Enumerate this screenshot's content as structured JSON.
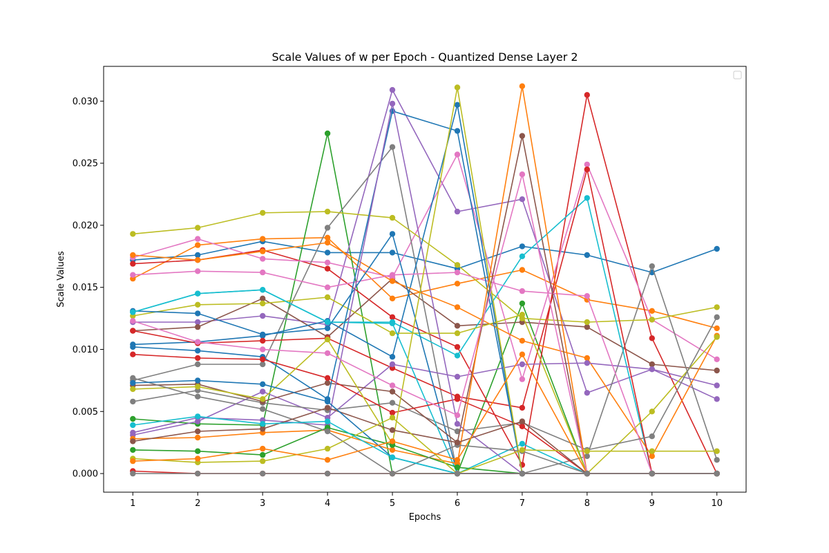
{
  "chart_data": {
    "type": "line",
    "title": "Scale Values of w per Epoch - Quantized Dense Layer 2",
    "xlabel": "Epochs",
    "ylabel": "Scale Values",
    "x": [
      1,
      2,
      3,
      4,
      5,
      6,
      7,
      8,
      9,
      10
    ],
    "xlim": [
      0.55,
      10.45
    ],
    "ylim": [
      -0.0015,
      0.0328
    ],
    "yticks": [
      "0.000",
      "0.005",
      "0.010",
      "0.015",
      "0.020",
      "0.025",
      "0.030"
    ],
    "legend": "top-right (empty)",
    "marker": "circle",
    "series": [
      {
        "color": "#1f77b4",
        "values": [
          0.0172,
          0.0176,
          0.0187,
          0.0178,
          0.0178,
          0.0165,
          0.0183,
          0.0176,
          0.0162,
          0.0181
        ]
      },
      {
        "color": "#ff7f0e",
        "values": [
          0.0157,
          0.0184,
          0.0189,
          0.019,
          0.0141,
          0.0153,
          0.0164,
          0.014,
          0.0131,
          0.0117
        ]
      },
      {
        "color": "#2ca02c",
        "values": [
          0.0044,
          0.004,
          0.0039,
          0.0274,
          0.0,
          0.0,
          0.0137,
          0.0,
          0.0,
          0.0
        ]
      },
      {
        "color": "#d62728",
        "values": [
          0.0169,
          0.0172,
          0.018,
          0.0165,
          0.0126,
          0.0102,
          0.0007,
          0.0305,
          0.0109,
          0.0
        ]
      },
      {
        "color": "#9467bd",
        "values": [
          0.0122,
          0.0122,
          0.0127,
          0.012,
          0.0309,
          0.0211,
          0.0221,
          0.0065,
          0.0084,
          0.006
        ]
      },
      {
        "color": "#8c564b",
        "values": [
          0.0115,
          0.0118,
          0.0141,
          0.011,
          0.0157,
          0.0119,
          0.0122,
          0.0118,
          0.0088,
          0.0083
        ]
      },
      {
        "color": "#e377c2",
        "values": [
          0.0174,
          0.0189,
          0.0173,
          0.017,
          0.0158,
          0.0257,
          0.0076,
          0.0249,
          0.0124,
          0.0092
        ]
      },
      {
        "color": "#7f7f7f",
        "values": [
          0.0075,
          0.0088,
          0.0088,
          0.0198,
          0.0263,
          0.0,
          0.0,
          0.0014,
          0.0167,
          0.0011
        ]
      },
      {
        "color": "#bcbd22",
        "values": [
          0.0193,
          0.0198,
          0.021,
          0.0211,
          0.0206,
          0.0168,
          0.0125,
          0.0122,
          0.0124,
          0.0134
        ]
      },
      {
        "color": "#17becf",
        "values": [
          0.013,
          0.0145,
          0.0148,
          0.0122,
          0.0122,
          0.0095,
          0.0175,
          0.0222,
          0.0,
          0.0
        ]
      },
      {
        "color": "#1f77b4",
        "values": [
          0.0104,
          0.0106,
          0.0111,
          0.0123,
          0.0094,
          0.0297,
          0.0,
          0.0,
          0.0,
          0.0
        ]
      },
      {
        "color": "#ff7f0e",
        "values": [
          0.0176,
          0.0172,
          0.0179,
          0.0186,
          0.0155,
          0.0134,
          0.0107,
          0.0093,
          0.0014,
          0.0111
        ]
      },
      {
        "color": "#d62728",
        "values": [
          0.0115,
          0.0105,
          0.0107,
          0.0109,
          0.0085,
          0.0062,
          0.0053,
          0.0245,
          0.0,
          0.0
        ]
      },
      {
        "color": "#9467bd",
        "values": [
          0.0031,
          0.0042,
          0.0066,
          0.0045,
          0.0088,
          0.0078,
          0.0088,
          0.0089,
          0.0084,
          0.0071
        ]
      },
      {
        "color": "#bcbd22",
        "values": [
          0.0127,
          0.0136,
          0.0137,
          0.0142,
          0.0113,
          0.0113,
          0.0128,
          0.0,
          0.005,
          0.011
        ]
      },
      {
        "color": "#e377c2",
        "values": [
          0.016,
          0.0163,
          0.0162,
          0.015,
          0.016,
          0.0162,
          0.0147,
          0.0143,
          0.0,
          0.0
        ]
      },
      {
        "color": "#1f77b4",
        "values": [
          0.0131,
          0.0129,
          0.0112,
          0.0117,
          0.0193,
          0.0,
          0.0,
          0.0,
          0.0,
          0.0
        ]
      },
      {
        "color": "#7f7f7f",
        "values": [
          0.0058,
          0.0067,
          0.0057,
          0.0051,
          0.0057,
          0.0034,
          0.0041,
          0.0019,
          0.003,
          0.0126
        ]
      },
      {
        "color": "#8c564b",
        "values": [
          0.0071,
          0.0072,
          0.0058,
          0.0073,
          0.0066,
          0.0025,
          0.0272,
          0.0,
          0.0,
          0.0
        ]
      },
      {
        "color": "#17becf",
        "values": [
          0.013,
          0.0145,
          0.0148,
          0.0122,
          0.0121,
          0.0,
          0.0024,
          0.0,
          0.0,
          0.0
        ]
      },
      {
        "color": "#1f77b4",
        "values": [
          0.0102,
          0.0099,
          0.0094,
          0.006,
          0.0292,
          0.0276,
          0.0,
          0.0,
          0.0,
          0.0
        ]
      },
      {
        "color": "#d62728",
        "values": [
          0.0096,
          0.0093,
          0.0092,
          0.0077,
          0.0049,
          0.006,
          0.0038,
          0.0,
          0.0,
          0.0
        ]
      },
      {
        "color": "#bcbd22",
        "values": [
          0.0068,
          0.007,
          0.006,
          0.0108,
          0.0024,
          0.0311,
          0.0,
          0.0,
          0.0,
          0.0
        ]
      },
      {
        "color": "#9467bd",
        "values": [
          0.0033,
          0.0045,
          0.0043,
          0.0039,
          0.0298,
          0.004,
          0.0,
          0.0,
          0.0,
          0.0
        ]
      },
      {
        "color": "#ff7f0e",
        "values": [
          0.0028,
          0.0029,
          0.0033,
          0.0035,
          0.0019,
          0.0008,
          0.0312,
          0.0,
          0.0,
          0.0
        ]
      },
      {
        "color": "#e377c2",
        "values": [
          0.0123,
          0.0106,
          0.01,
          0.0097,
          0.0071,
          0.0047,
          0.0241,
          0.0,
          0.0,
          0.0
        ]
      },
      {
        "color": "#2ca02c",
        "values": [
          0.0019,
          0.0018,
          0.0015,
          0.0037,
          0.0023,
          0.0005,
          0.0,
          0.0,
          0.0,
          0.0
        ]
      },
      {
        "color": "#7f7f7f",
        "values": [
          0.0077,
          0.0062,
          0.0052,
          0.0034,
          0.0,
          0.0023,
          0.0018,
          0.0,
          0.0,
          0.0
        ]
      },
      {
        "color": "#8c564b",
        "values": [
          0.0026,
          0.0034,
          0.0036,
          0.0053,
          0.0035,
          0.0025,
          0.0042,
          0.0,
          0.0,
          0.0
        ]
      },
      {
        "color": "#1f77b4",
        "values": [
          0.0073,
          0.0075,
          0.0072,
          0.0058,
          0.0013,
          0.0,
          0.0,
          0.0,
          0.0,
          0.0
        ]
      },
      {
        "color": "#bcbd22",
        "values": [
          0.0012,
          0.0009,
          0.001,
          0.002,
          0.0045,
          0.0,
          0.0019,
          0.0018,
          0.0018,
          0.0018
        ]
      },
      {
        "color": "#ff7f0e",
        "values": [
          0.001,
          0.0012,
          0.002,
          0.0011,
          0.0026,
          0.0011,
          0.0096,
          0.0,
          0.0,
          0.0
        ]
      },
      {
        "color": "#17becf",
        "values": [
          0.0039,
          0.0046,
          0.004,
          0.0042,
          0.0013,
          0.0,
          0.0,
          0.0,
          0.0,
          0.0
        ]
      },
      {
        "color": "#d62728",
        "values": [
          0.0002,
          0.0,
          0.0,
          0.0,
          0.0,
          0.0,
          0.0,
          0.0,
          0.0,
          0.0
        ]
      },
      {
        "color": "#7f7f7f",
        "values": [
          0.0,
          0.0,
          0.0,
          0.0,
          0.0,
          0.0,
          0.0,
          0.0,
          0.0,
          0.0
        ]
      }
    ]
  }
}
